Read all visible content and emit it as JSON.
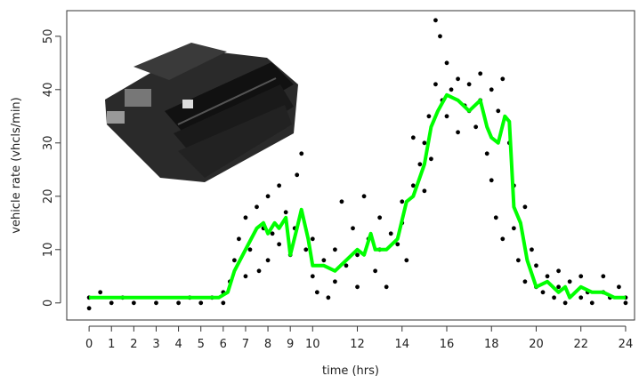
{
  "chart_data": {
    "type": "scatter",
    "x_label": "time (hrs)",
    "y_label": "vehicle rate (vhcls/min)",
    "xlim": [
      -1,
      24.4
    ],
    "ylim": [
      -3.2,
      54.8
    ],
    "xticks": [
      0,
      1,
      2,
      3,
      4,
      5,
      6,
      7,
      8,
      9,
      10,
      12,
      14,
      16,
      18,
      20,
      22,
      24
    ],
    "yticks": [
      0,
      10,
      20,
      30,
      40,
      50
    ],
    "series": [
      {
        "type": "scatter",
        "color": "#000000",
        "x": [
          0,
          0,
          0.5,
          1,
          1.5,
          2,
          3,
          4,
          4.5,
          5,
          5.5,
          6,
          6,
          6.3,
          6.5,
          6.7,
          7,
          7,
          7.2,
          7.5,
          7.6,
          7.8,
          8,
          8,
          8.2,
          8.5,
          8.5,
          8.8,
          9,
          9.2,
          9.3,
          9.5,
          9.5,
          9.7,
          10,
          10,
          10.2,
          10.5,
          10.7,
          11,
          11,
          11.3,
          11.5,
          11.8,
          12,
          12,
          12.3,
          12.5,
          12.8,
          13,
          13,
          13.3,
          13.5,
          13.8,
          14,
          14,
          14.2,
          14.5,
          14.5,
          14.8,
          15,
          15,
          15.2,
          15.3,
          15.5,
          15.5,
          15.7,
          15.8,
          16,
          16,
          16.2,
          16.5,
          16.5,
          16.8,
          17,
          17,
          17.3,
          17.5,
          17.5,
          17.8,
          18,
          18,
          18.2,
          18.3,
          18.5,
          18.5,
          18.8,
          19,
          19,
          19.2,
          19.5,
          19.5,
          19.8,
          20,
          20,
          20.3,
          20.5,
          20.8,
          21,
          21,
          21.3,
          21.5,
          22,
          22,
          22.3,
          22.5,
          23,
          23,
          23.3,
          23.7,
          24,
          24
        ],
        "values": [
          -1,
          1,
          2,
          0,
          1,
          0,
          0,
          0,
          1,
          0,
          1,
          0,
          2,
          4,
          8,
          12,
          5,
          16,
          10,
          18,
          6,
          14,
          20,
          8,
          13,
          22,
          11,
          17,
          9,
          14,
          24,
          28,
          17,
          10,
          5,
          12,
          2,
          8,
          1,
          4,
          10,
          19,
          7,
          14,
          9,
          3,
          20,
          12,
          6,
          16,
          10,
          3,
          13,
          11,
          15,
          19,
          8,
          22,
          31,
          26,
          21,
          30,
          35,
          27,
          41,
          53,
          50,
          38,
          45,
          35,
          40,
          32,
          42,
          37,
          36,
          41,
          33,
          43,
          38,
          28,
          40,
          23,
          16,
          36,
          42,
          12,
          30,
          22,
          14,
          8,
          18,
          4,
          10,
          3,
          7,
          2,
          5,
          1,
          6,
          3,
          0,
          4,
          5,
          1,
          2,
          0,
          5,
          2,
          1,
          3,
          0,
          1
        ]
      },
      {
        "type": "line",
        "color": "#00ff00",
        "x": [
          0,
          1,
          2,
          3,
          4,
          5,
          5.8,
          6.2,
          6.5,
          7,
          7.5,
          7.8,
          8,
          8.3,
          8.5,
          8.8,
          9,
          9.3,
          9.5,
          9.8,
          10,
          10.5,
          11,
          11.5,
          12,
          12.3,
          12.6,
          12.8,
          13.3,
          13.8,
          14.2,
          14.5,
          15,
          15.3,
          15.6,
          16,
          16.5,
          17,
          17.5,
          17.8,
          18,
          18.3,
          18.6,
          18.8,
          19,
          19.3,
          19.6,
          20,
          20.5,
          21,
          21.3,
          21.5,
          22,
          22.5,
          23,
          23.5,
          24
        ],
        "values": [
          1,
          1,
          1,
          1,
          1,
          1,
          1,
          2,
          6,
          10,
          14,
          15,
          13,
          15,
          14,
          16,
          9,
          14,
          17.5,
          12,
          7,
          7,
          6,
          8,
          10,
          9,
          13,
          10,
          10,
          12,
          19,
          20,
          26,
          33,
          36,
          39,
          38,
          36,
          38,
          33,
          31,
          30,
          35,
          34,
          18,
          15,
          8,
          3,
          4,
          2,
          3,
          1,
          3,
          2,
          2,
          1,
          1
        ]
      }
    ]
  }
}
